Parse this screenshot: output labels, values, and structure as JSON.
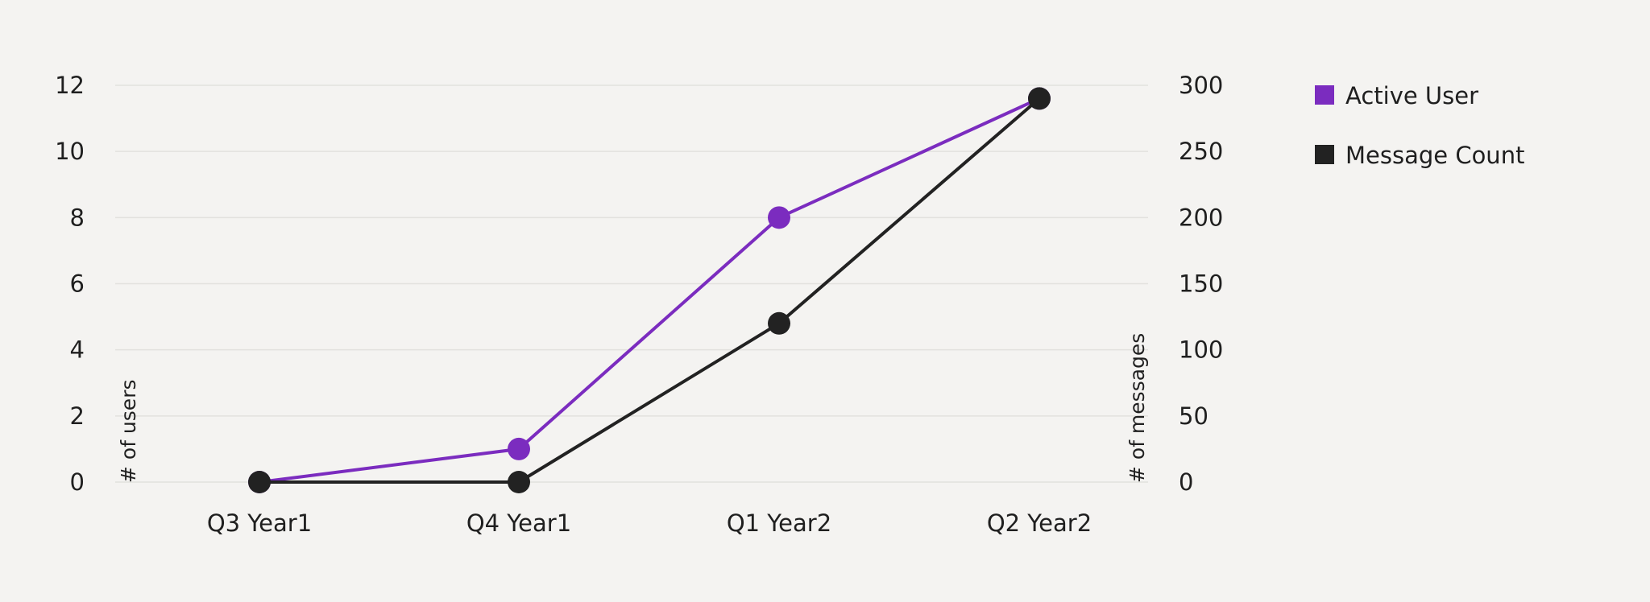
{
  "chart_data": {
    "type": "line",
    "categories": [
      "Q3 Year1",
      "Q4 Year1",
      "Q1 Year2",
      "Q2 Year2"
    ],
    "series": [
      {
        "name": "Active User",
        "axis": "left",
        "color": "#7b2cbf",
        "values": [
          0,
          1,
          8,
          11.6
        ]
      },
      {
        "name": "Message Count",
        "axis": "right",
        "color": "#222222",
        "values": [
          0,
          0,
          120,
          290
        ]
      }
    ],
    "y_left": {
      "label": "# of users",
      "range": [
        0,
        12
      ],
      "ticks": [
        0,
        2,
        4,
        6,
        8,
        10,
        12
      ]
    },
    "y_right": {
      "label": "# of messages",
      "range": [
        0,
        300
      ],
      "ticks": [
        0,
        50,
        100,
        150,
        200,
        250,
        300
      ]
    },
    "grid": true,
    "legend_position": "right"
  }
}
